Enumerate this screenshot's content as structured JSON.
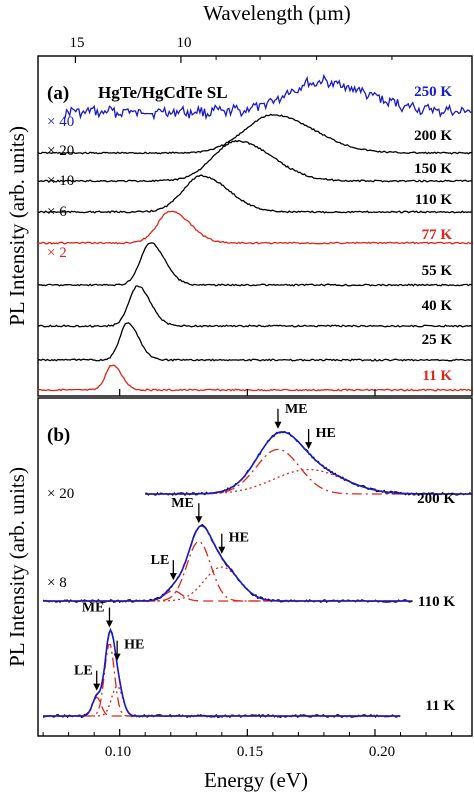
{
  "figure": {
    "top_axis_title": "Wavelength (µm)",
    "x_axis_title": "Energy (eV)",
    "panel_a_ylabel": "PL Intensity (arb. units)",
    "panel_b_ylabel": "PL Intensity (arb. units)"
  },
  "colors": {
    "black": "#000000",
    "blue": "#1a1acc",
    "red": "#e0251b"
  },
  "chart_data": [
    {
      "panel": "(a)",
      "type": "line",
      "title": "HgTe/HgCdTe  SL",
      "xlabel": "Energy (eV)",
      "ylabel": "PL Intensity (arb. units)",
      "top_axis": {
        "label": "Wavelength (µm)",
        "ticks": [
          15,
          10
        ],
        "tick_labels": [
          "15",
          "10"
        ]
      },
      "xlim": [
        0.068,
        0.238
      ],
      "grid": false,
      "series": [
        {
          "name": "250 K",
          "multiplier": "× 40",
          "color": "blue",
          "peak_energy": 0.178,
          "fwhm": 0.03,
          "noise": true
        },
        {
          "name": "200 K",
          "multiplier": "× 20",
          "color": "black",
          "peak_energy": 0.16,
          "fwhm": 0.026
        },
        {
          "name": "150 K",
          "multiplier": "× 10",
          "color": "black",
          "peak_energy": 0.146,
          "fwhm": 0.022
        },
        {
          "name": "110 K",
          "multiplier": "× 6",
          "color": "black",
          "peak_energy": 0.132,
          "fwhm": 0.017
        },
        {
          "name": "77 K",
          "multiplier": "× 2",
          "color": "red",
          "peak_energy": 0.12,
          "fwhm": 0.012
        },
        {
          "name": "55 K",
          "multiplier": "",
          "color": "black",
          "peak_energy": 0.112,
          "fwhm": 0.009
        },
        {
          "name": "40 K",
          "multiplier": "",
          "color": "black",
          "peak_energy": 0.107,
          "fwhm": 0.008
        },
        {
          "name": "25 K",
          "multiplier": "",
          "color": "black",
          "peak_energy": 0.103,
          "fwhm": 0.007
        },
        {
          "name": "11 K",
          "multiplier": "",
          "color": "red",
          "peak_energy": 0.097,
          "fwhm": 0.006
        }
      ]
    },
    {
      "panel": "(b)",
      "type": "line",
      "xlabel": "Energy (eV)",
      "ylabel": "PL Intensity (arb. units)",
      "xlim": [
        0.068,
        0.238
      ],
      "x_ticks": [
        0.1,
        0.15,
        0.2
      ],
      "x_tick_labels": [
        "0.10",
        "0.15",
        "0.20"
      ],
      "grid": false,
      "spectra": [
        {
          "temperature": "200 K",
          "multiplier": "× 20",
          "x_range": [
            0.11,
            0.238
          ],
          "measured_color": "black",
          "fit_color": "blue",
          "components_color": "red",
          "components": [
            {
              "label": "ME",
              "energy": 0.162,
              "fwhm": 0.02,
              "amplitude": 0.62
            },
            {
              "label": "HE",
              "energy": 0.174,
              "fwhm": 0.032,
              "amplitude": 0.34
            }
          ]
        },
        {
          "temperature": "110 K",
          "multiplier": "× 8",
          "x_range": [
            0.07,
            0.215
          ],
          "measured_color": "black",
          "fit_color": "blue",
          "components_color": "red",
          "components": [
            {
              "label": "LE",
              "energy": 0.121,
              "fwhm": 0.008,
              "amplitude": 0.12
            },
            {
              "label": "ME",
              "energy": 0.131,
              "fwhm": 0.011,
              "amplitude": 0.7
            },
            {
              "label": "HE",
              "energy": 0.14,
              "fwhm": 0.016,
              "amplitude": 0.4
            }
          ]
        },
        {
          "temperature": "11 K",
          "multiplier": "",
          "x_range": [
            0.07,
            0.21
          ],
          "measured_color": "black",
          "fit_color": "blue",
          "components_color": "red",
          "components": [
            {
              "label": "LE",
              "energy": 0.091,
              "fwhm": 0.004,
              "amplitude": 0.22
            },
            {
              "label": "ME",
              "energy": 0.096,
              "fwhm": 0.0045,
              "amplitude": 0.85
            },
            {
              "label": "HE",
              "energy": 0.099,
              "fwhm": 0.005,
              "amplitude": 0.35
            }
          ]
        }
      ]
    }
  ]
}
